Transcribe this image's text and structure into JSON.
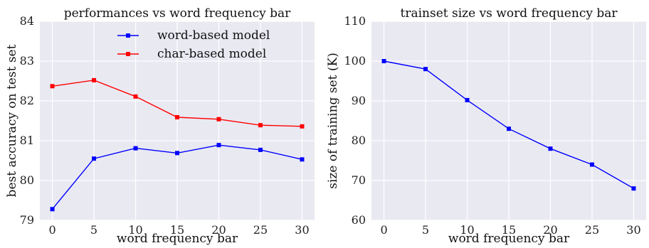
{
  "chart_data": [
    {
      "type": "line",
      "title": "performances vs word frequency bar",
      "xlabel": "word frequency bar",
      "ylabel": "best accuracy on test set",
      "x": [
        0,
        5,
        10,
        15,
        20,
        25,
        30
      ],
      "xticks": [
        "0",
        "5",
        "10",
        "15",
        "20",
        "25",
        "30"
      ],
      "xlim": [
        -1.5,
        31.5
      ],
      "ylim": [
        79,
        84
      ],
      "yticks": [
        "79",
        "80",
        "81",
        "82",
        "83",
        "84"
      ],
      "grid": true,
      "legend": "top-center",
      "series": [
        {
          "name": "word-based model",
          "color": "#0000ff",
          "values": [
            79.28,
            80.55,
            80.81,
            80.69,
            80.89,
            80.77,
            80.53
          ]
        },
        {
          "name": "char-based model",
          "color": "#ff0000",
          "values": [
            82.37,
            82.52,
            82.11,
            81.59,
            81.54,
            81.39,
            81.36
          ]
        }
      ]
    },
    {
      "type": "line",
      "title": "trainset size vs word frequency bar",
      "xlabel": "word frequency bar",
      "ylabel": "size of training set (K)",
      "x": [
        0,
        5,
        10,
        15,
        20,
        25,
        30
      ],
      "xticks": [
        "0",
        "5",
        "10",
        "15",
        "20",
        "25",
        "30"
      ],
      "xlim": [
        -1.5,
        31.5
      ],
      "ylim": [
        60,
        110
      ],
      "yticks": [
        "60",
        "70",
        "80",
        "90",
        "100",
        "110"
      ],
      "grid": true,
      "series": [
        {
          "color": "#0000ff",
          "values": [
            100,
            98,
            90.2,
            83,
            78,
            74,
            68
          ]
        }
      ]
    }
  ]
}
